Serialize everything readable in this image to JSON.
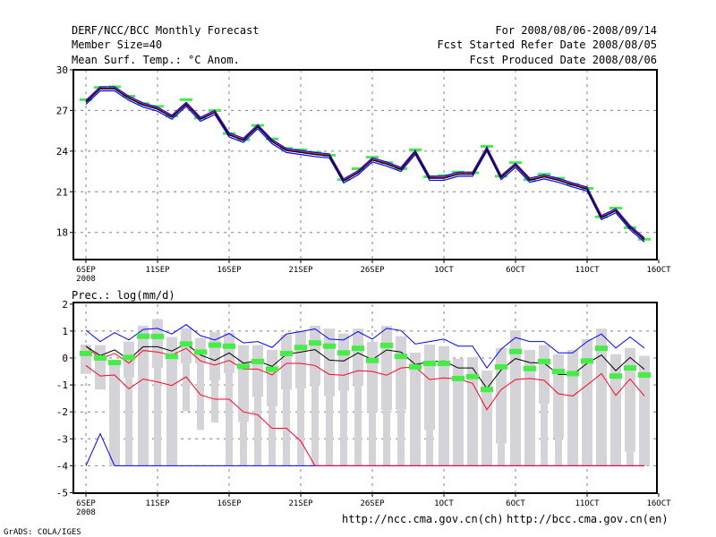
{
  "header": {
    "title": "DERF/NCC/BCC Monthly Forecast",
    "member": "Member Size=40",
    "variable": "Mean Surf. Temp.: °C Anom.",
    "period": "For 2008/08/06-2008/09/14",
    "started": "Fcst Started Refer Date 2008/08/05",
    "produced": "Fcst Produced Date 2008/08/06"
  },
  "footer": {
    "link_ch": "http://ncc.cma.gov.cn(ch)",
    "link_en": "http://bcc.cma.gov.cn(en)",
    "credit": "GrADS: COLA/IGES"
  },
  "colors": {
    "mean": "#000000",
    "spread": "#0000ff",
    "member": "#ff0022",
    "obs": "#44ee44",
    "box": "#d4d4d8",
    "grid": "#808080"
  },
  "chart_data": [
    {
      "type": "line",
      "title": "Mean Surf. Temp.: °C Anom.",
      "xlabels": [
        "6SEP",
        "11SEP",
        "16SEP",
        "21SEP",
        "26SEP",
        "1OCT",
        "6OCT",
        "11OCT",
        "16OCT"
      ],
      "xsublabel": "2008",
      "yticks": [
        "30",
        "27",
        "24",
        "21",
        "18"
      ],
      "ylim": [
        16,
        30
      ],
      "grid": true,
      "series": [
        {
          "name": "ensemble mean",
          "values": [
            27.6,
            28.6,
            28.6,
            27.9,
            27.4,
            27.1,
            26.5,
            27.45,
            26.35,
            26.85,
            25.2,
            24.8,
            25.8,
            24.7,
            24.05,
            23.9,
            23.75,
            23.65,
            21.8,
            22.4,
            23.35,
            23.05,
            22.65,
            23.9,
            22.0,
            22.0,
            22.3,
            22.3,
            24.15,
            22.05,
            22.95,
            21.85,
            22.1,
            21.85,
            21.5,
            21.2,
            19.1,
            19.6,
            18.35,
            17.45
          ]
        },
        {
          "name": "observed",
          "values": [
            27.8,
            28.7,
            28.75,
            28.05,
            27.5,
            27.3,
            26.6,
            27.8,
            26.45,
            27.0,
            25.3,
            24.85,
            25.9,
            24.9,
            24.2,
            24.1,
            23.9,
            23.7,
            21.9,
            22.7,
            23.55,
            23.15,
            22.7,
            24.1,
            22.1,
            22.2,
            22.45,
            22.4,
            24.35,
            22.15,
            23.15,
            21.9,
            22.3,
            22.0,
            21.55,
            21.25,
            19.15,
            19.8,
            18.35,
            17.5
          ]
        }
      ],
      "spread": 0.15
    },
    {
      "type": "bar",
      "title": "Prec.: log(mm/d)",
      "xlabels": [
        "6SEP",
        "11SEP",
        "16SEP",
        "21SEP",
        "26SEP",
        "1OCT",
        "6OCT",
        "11OCT",
        "16OCT"
      ],
      "xsublabel": "2008",
      "yticks": [
        "2",
        "1",
        "0",
        "-1",
        "-2",
        "-3",
        "-4",
        "-5"
      ],
      "ylim": [
        -5,
        2
      ],
      "grid": true,
      "series": [
        {
          "name": "max",
          "values": [
            1.03,
            0.61,
            0.94,
            0.67,
            1.06,
            1.1,
            0.89,
            1.24,
            0.83,
            0.67,
            0.91,
            0.56,
            0.61,
            0.39,
            0.89,
            0.98,
            1.08,
            0.7,
            0.67,
            0.98,
            0.7,
            1.1,
            1.02,
            0.52,
            0.61,
            0.7,
            0.44,
            0.44,
            -0.37,
            0.33,
            0.76,
            0.61,
            0.61,
            0.19,
            0.19,
            0.61,
            0.89,
            0.37,
            0.78,
            0.37
          ]
        },
        {
          "name": "mean",
          "values": [
            0.44,
            0.09,
            0.3,
            -0.06,
            0.42,
            0.42,
            0.26,
            0.53,
            0.11,
            -0.09,
            0.19,
            -0.19,
            -0.11,
            -0.31,
            0.14,
            0.22,
            0.31,
            -0.08,
            -0.11,
            0.19,
            -0.06,
            0.3,
            0.22,
            -0.24,
            -0.14,
            -0.11,
            -0.37,
            -0.37,
            -1.13,
            -0.44,
            -0.02,
            -0.17,
            -0.19,
            -0.61,
            -0.61,
            -0.2,
            0.11,
            -0.47,
            0.02,
            -0.42
          ]
        },
        {
          "name": "upper member",
          "values": [
            0.44,
            -0.03,
            0.17,
            -0.19,
            0.28,
            0.22,
            0.11,
            0.36,
            -0.11,
            -0.26,
            -0.09,
            -0.41,
            -0.41,
            -0.63,
            -0.2,
            -0.2,
            -0.28,
            -0.61,
            -0.64,
            -0.47,
            -0.5,
            -0.64,
            -0.37,
            -0.33,
            -0.8,
            -0.74,
            -0.78,
            -0.94,
            -1.92,
            -1.17,
            -0.8,
            -0.76,
            -0.83,
            -1.33,
            -1.41,
            -1.0,
            -0.58,
            -1.39,
            -0.78,
            -1.41
          ]
        },
        {
          "name": "lower member",
          "values": [
            -0.28,
            -0.67,
            -0.63,
            -1.14,
            -0.78,
            -0.89,
            -1.02,
            -0.7,
            -1.37,
            -1.53,
            -1.53,
            -2.0,
            -2.11,
            -2.61,
            -2.61,
            -3.08,
            -4,
            -4,
            -4,
            -4,
            -4,
            -4,
            -4,
            -4,
            -4,
            -4,
            -4,
            -4,
            -4,
            -4,
            -4,
            -4,
            -4,
            -4,
            -4,
            -4,
            -4,
            -4,
            -4,
            -4
          ]
        },
        {
          "name": "min",
          "values": [
            -4,
            -2.81,
            -4,
            -4,
            -4,
            -4,
            -4,
            -4,
            -4,
            -4,
            -4,
            -4,
            -4,
            -4,
            -4,
            -4,
            -4,
            -4,
            -4,
            -4,
            -4,
            -4,
            -4,
            -4,
            -4,
            -4,
            -4,
            -4,
            -4,
            -4,
            -4,
            -4,
            -4,
            -4,
            -4,
            -4,
            -4,
            -4,
            -4,
            -4
          ]
        },
        {
          "name": "observed",
          "values": [
            0.17,
            0,
            -0.17,
            0.02,
            0.81,
            0.8,
            0.06,
            0.52,
            0.22,
            0.48,
            0.44,
            -0.31,
            -0.13,
            -0.42,
            0.17,
            0.39,
            0.56,
            0.44,
            0.19,
            0.36,
            -0.09,
            0.47,
            0.06,
            -0.33,
            -0.2,
            -0.2,
            -0.76,
            -0.69,
            -1.17,
            -0.33,
            0.24,
            -0.39,
            -0.13,
            -0.5,
            -0.58,
            -0.11,
            0.36,
            -0.67,
            -0.37,
            -0.63
          ]
        }
      ],
      "box_top": [
        0.5,
        0.48,
        -0.11,
        0.61,
        1.2,
        1.44,
        0.78,
        1.11,
        0.74,
        0.97,
        0.94,
        0.48,
        0.48,
        0.3,
        0.86,
        1.0,
        1.2,
        1.09,
        0.91,
        1.09,
        0.61,
        1.19,
        0.81,
        0.2,
        0.5,
        0.44,
        -0.03,
        0.03,
        -0.47,
        0.37,
        1.03,
        0.3,
        0.48,
        0.14,
        0.3,
        0.7,
        1.09,
        0.14,
        0.37,
        0.08
      ],
      "box_bottom": [
        -0.59,
        -1.17,
        -4,
        -0.74,
        -4,
        -0.37,
        -4,
        -0.2,
        -0.2,
        -0.83,
        -0.56,
        -2.37,
        -1.44,
        -1.8,
        -1.17,
        -1.13,
        -1.0,
        -1.42,
        -1.22,
        -1.0,
        -2.0,
        -1.94,
        -1.92,
        -4,
        -2.67,
        -4,
        -4,
        -4,
        -4,
        -3.17,
        -4,
        -4,
        -1.7,
        -2.97,
        -4,
        -4,
        -4,
        -4,
        -3.48,
        -4
      ],
      "whisker_bottom": [
        -0.59,
        -1.17,
        -4,
        -4,
        -4,
        -4,
        -4,
        -1.97,
        -2.67,
        -2.39,
        -4,
        -4,
        -4,
        -4,
        -4,
        -4,
        -4,
        -4,
        -4,
        -4,
        -4,
        -4,
        -4,
        -4,
        -4,
        -4,
        -4,
        -4,
        -4,
        -4,
        -4,
        -4,
        -4,
        -4,
        -4,
        -4,
        -4,
        -4,
        -4,
        -4
      ]
    }
  ]
}
